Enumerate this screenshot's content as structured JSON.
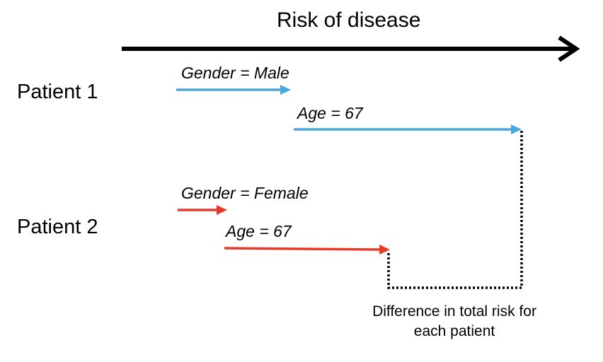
{
  "title": "Risk of disease",
  "patients": [
    {
      "label": "Patient 1",
      "factors": [
        {
          "label": "Gender = Male"
        },
        {
          "label": "Age = 67"
        }
      ]
    },
    {
      "label": "Patient 2",
      "factors": [
        {
          "label": "Gender = Female"
        },
        {
          "label": "Age = 67"
        }
      ]
    }
  ],
  "difference_label": "Difference in total risk for each patient",
  "colors": {
    "axis": "#000000",
    "patient1": "#4aa8e0",
    "patient2": "#e8392a",
    "difference": "#000000"
  }
}
